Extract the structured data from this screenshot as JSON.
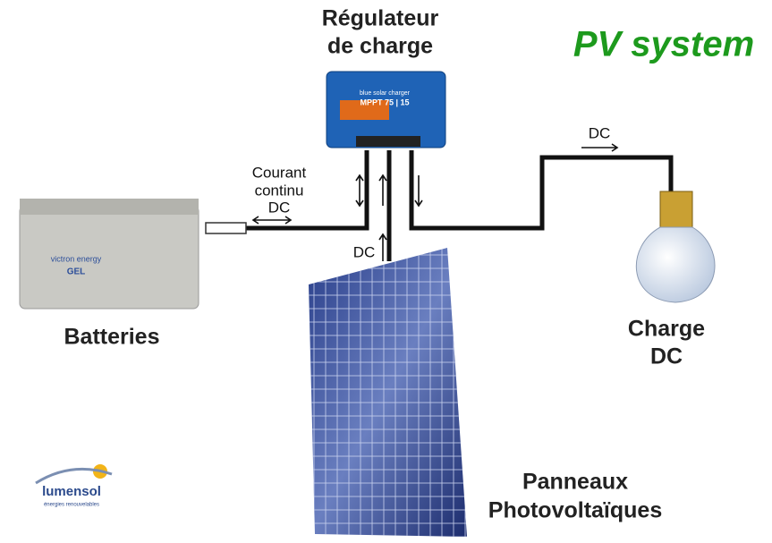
{
  "title": [
    "Régulateur",
    "de charge"
  ],
  "badge": "PV system",
  "controller": {
    "brand": "blue solar charger",
    "model": "MPPT 75 | 15"
  },
  "battery": {
    "brand": "victron energy",
    "type": "GEL",
    "label": "Batteries"
  },
  "wire_labels": {
    "battery": [
      "Courant",
      "continu",
      "DC"
    ],
    "panel": "DC",
    "load": "DC"
  },
  "load": [
    "Charge",
    "DC"
  ],
  "panel": [
    "Panneaux",
    "Photovoltaïques"
  ],
  "logo": {
    "name": "lumensol",
    "tagline": "énergies renouvelables"
  }
}
